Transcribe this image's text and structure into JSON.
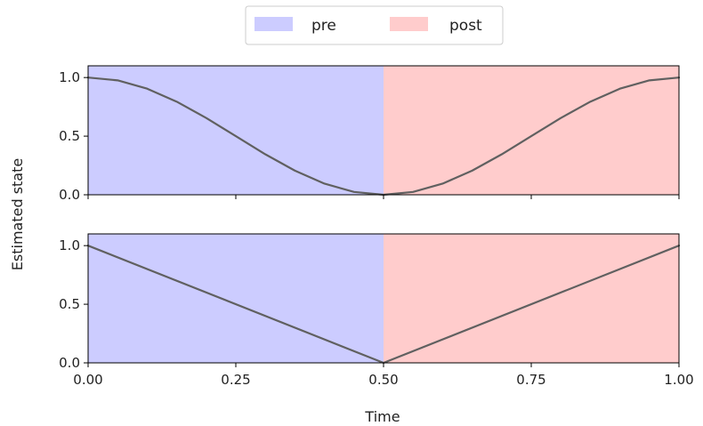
{
  "chart_data": {
    "type": "line",
    "xlabel": "Time",
    "ylabel": "Estimated state",
    "xlim": [
      0,
      1
    ],
    "ylim": [
      0,
      1.1
    ],
    "x_ticks": [
      "0.00",
      "0.25",
      "0.50",
      "0.75",
      "1.00"
    ],
    "y_ticks": [
      "0.0",
      "0.5",
      "1.0"
    ],
    "grid": false,
    "legend_placement": "top-center",
    "legend": [
      {
        "label": "pre",
        "color": "#ccccff"
      },
      {
        "label": "post",
        "color": "#ffcccc"
      }
    ],
    "regions": [
      {
        "label": "pre",
        "x": [
          0,
          0.5
        ],
        "color": "#ccccff"
      },
      {
        "label": "post",
        "x": [
          0.5,
          1.0
        ],
        "color": "#ffcccc"
      }
    ],
    "line_color": "#606060",
    "panels": [
      {
        "name": "top",
        "curve": "cosine",
        "x": [
          0,
          0.05,
          0.1,
          0.15,
          0.2,
          0.25,
          0.3,
          0.35,
          0.4,
          0.45,
          0.5,
          0.55,
          0.6,
          0.65,
          0.7,
          0.75,
          0.8,
          0.85,
          0.9,
          0.95,
          1.0
        ],
        "y": [
          1.0,
          0.976,
          0.905,
          0.794,
          0.655,
          0.5,
          0.345,
          0.206,
          0.095,
          0.024,
          0.0,
          0.024,
          0.095,
          0.206,
          0.345,
          0.5,
          0.655,
          0.794,
          0.905,
          0.976,
          1.0
        ]
      },
      {
        "name": "bottom",
        "curve": "linear",
        "x": [
          0,
          0.5,
          1.0
        ],
        "y": [
          1.0,
          0.0,
          1.0
        ]
      }
    ]
  }
}
